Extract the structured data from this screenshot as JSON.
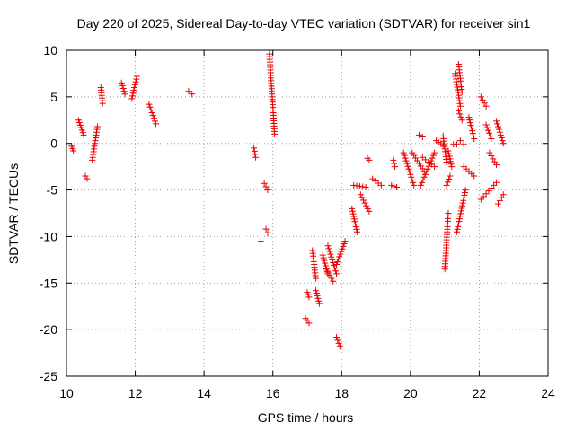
{
  "chart_data": {
    "type": "scatter",
    "title": "Day 220 of 2025, Sidereal Day-to-day VTEC variation (SDTVAR) for receiver sin1",
    "xlabel": "GPS time / hours",
    "ylabel": "SDTVAR / TECUs",
    "xlim": [
      10,
      24
    ],
    "ylim": [
      -25,
      10
    ],
    "xticks": [
      10,
      12,
      14,
      16,
      18,
      20,
      22,
      24
    ],
    "yticks": [
      -25,
      -20,
      -15,
      -10,
      -5,
      0,
      5,
      10
    ],
    "xtick_labels": [
      "10",
      "12",
      "14",
      "16",
      "18",
      "20",
      "22",
      "24"
    ],
    "ytick_labels": [
      "-25",
      "-20",
      "-15",
      "-10",
      "-5",
      "0",
      "5",
      "10"
    ],
    "grid": true,
    "marker": "+",
    "color": "#ee0000",
    "series": [
      {
        "name": "SDTVAR",
        "segments": [
          {
            "x0": 10.15,
            "x1": 10.2,
            "y0": -0.3,
            "y1": -0.8
          },
          {
            "x0": 10.35,
            "x1": 10.5,
            "y0": 2.5,
            "y1": 0.9
          },
          {
            "x0": 10.55,
            "x1": 10.6,
            "y0": -3.5,
            "y1": -3.8
          },
          {
            "x0": 10.75,
            "x1": 10.9,
            "y0": -1.8,
            "y1": 1.8
          },
          {
            "x0": 11.0,
            "x1": 11.05,
            "y0": 6.0,
            "y1": 4.3
          },
          {
            "x0": 11.6,
            "x1": 11.7,
            "y0": 6.5,
            "y1": 5.3
          },
          {
            "x0": 11.9,
            "x1": 12.05,
            "y0": 4.8,
            "y1": 7.2
          },
          {
            "x0": 12.4,
            "x1": 12.6,
            "y0": 4.2,
            "y1": 2.1
          },
          {
            "x0": 13.55,
            "x1": 13.65,
            "y0": 5.6,
            "y1": 5.3
          },
          {
            "x0": 15.45,
            "x1": 15.5,
            "y0": -0.5,
            "y1": -1.5
          },
          {
            "x0": 15.65,
            "x1": 15.65,
            "y0": -10.5,
            "y1": -10.5
          },
          {
            "x0": 15.75,
            "x1": 15.85,
            "y0": -4.3,
            "y1": -5.0
          },
          {
            "x0": 15.8,
            "x1": 15.85,
            "y0": -9.2,
            "y1": -9.6
          },
          {
            "x0": 15.9,
            "x1": 16.05,
            "y0": 9.6,
            "y1": 1.0
          },
          {
            "x0": 16.95,
            "x1": 17.05,
            "y0": -18.8,
            "y1": -19.3
          },
          {
            "x0": 17.0,
            "x1": 17.05,
            "y0": -16.0,
            "y1": -16.5
          },
          {
            "x0": 17.15,
            "x1": 17.25,
            "y0": -11.5,
            "y1": -14.5
          },
          {
            "x0": 17.25,
            "x1": 17.35,
            "y0": -15.8,
            "y1": -17.2
          },
          {
            "x0": 17.45,
            "x1": 17.6,
            "y0": -12.0,
            "y1": -14.0
          },
          {
            "x0": 17.55,
            "x1": 17.75,
            "y0": -13.5,
            "y1": -14.8
          },
          {
            "x0": 17.6,
            "x1": 17.85,
            "y0": -11.0,
            "y1": -14.0
          },
          {
            "x0": 17.85,
            "x1": 17.95,
            "y0": -20.8,
            "y1": -21.8
          },
          {
            "x0": 17.85,
            "x1": 18.1,
            "y0": -13.0,
            "y1": -10.5
          },
          {
            "x0": 18.3,
            "x1": 18.45,
            "y0": -7.0,
            "y1": -9.5
          },
          {
            "x0": 18.35,
            "x1": 18.7,
            "y0": -4.5,
            "y1": -4.7
          },
          {
            "x0": 18.55,
            "x1": 18.8,
            "y0": -5.5,
            "y1": -7.3
          },
          {
            "x0": 18.75,
            "x1": 18.8,
            "y0": -1.6,
            "y1": -1.8
          },
          {
            "x0": 18.9,
            "x1": 19.15,
            "y0": -3.8,
            "y1": -4.5
          },
          {
            "x0": 19.45,
            "x1": 19.6,
            "y0": -4.5,
            "y1": -4.7
          },
          {
            "x0": 19.5,
            "x1": 19.55,
            "y0": -1.8,
            "y1": -2.5
          },
          {
            "x0": 19.8,
            "x1": 20.1,
            "y0": -1.0,
            "y1": -4.5
          },
          {
            "x0": 20.05,
            "x1": 20.4,
            "y0": -1.0,
            "y1": -3.0
          },
          {
            "x0": 20.25,
            "x1": 20.35,
            "y0": 0.9,
            "y1": 0.7
          },
          {
            "x0": 20.3,
            "x1": 20.7,
            "y0": -4.5,
            "y1": -1.0
          },
          {
            "x0": 20.35,
            "x1": 20.7,
            "y0": -1.5,
            "y1": -2.5
          },
          {
            "x0": 20.75,
            "x1": 20.95,
            "y0": 0.3,
            "y1": -0.2
          },
          {
            "x0": 20.95,
            "x1": 21.05,
            "y0": 0.8,
            "y1": -2.0
          },
          {
            "x0": 21.0,
            "x1": 21.1,
            "y0": -13.5,
            "y1": -7.5
          },
          {
            "x0": 21.05,
            "x1": 21.15,
            "y0": -4.5,
            "y1": -3.5
          },
          {
            "x0": 21.1,
            "x1": 21.2,
            "y0": -0.8,
            "y1": -2.5
          },
          {
            "x0": 21.25,
            "x1": 21.35,
            "y0": -0.1,
            "y1": -0.1
          },
          {
            "x0": 21.3,
            "x1": 21.45,
            "y0": 7.5,
            "y1": 4.0
          },
          {
            "x0": 21.4,
            "x1": 21.5,
            "y0": 8.5,
            "y1": 5.5
          },
          {
            "x0": 21.4,
            "x1": 21.5,
            "y0": 3.5,
            "y1": 2.5
          },
          {
            "x0": 21.35,
            "x1": 21.6,
            "y0": -9.5,
            "y1": -5.0
          },
          {
            "x0": 21.45,
            "x1": 21.55,
            "y0": 0.3,
            "y1": -0.1
          },
          {
            "x0": 21.55,
            "x1": 21.85,
            "y0": -2.5,
            "y1": -3.5
          },
          {
            "x0": 21.7,
            "x1": 21.85,
            "y0": 2.8,
            "y1": 0.5
          },
          {
            "x0": 22.05,
            "x1": 22.2,
            "y0": 5.0,
            "y1": 4.0
          },
          {
            "x0": 22.05,
            "x1": 22.5,
            "y0": -6.0,
            "y1": -4.2
          },
          {
            "x0": 22.2,
            "x1": 22.35,
            "y0": 2.0,
            "y1": 0.5
          },
          {
            "x0": 22.3,
            "x1": 22.5,
            "y0": -1.0,
            "y1": -2.3
          },
          {
            "x0": 22.5,
            "x1": 22.7,
            "y0": 2.4,
            "y1": 0.0
          },
          {
            "x0": 22.55,
            "x1": 22.7,
            "y0": -6.5,
            "y1": -5.5
          }
        ]
      }
    ]
  }
}
